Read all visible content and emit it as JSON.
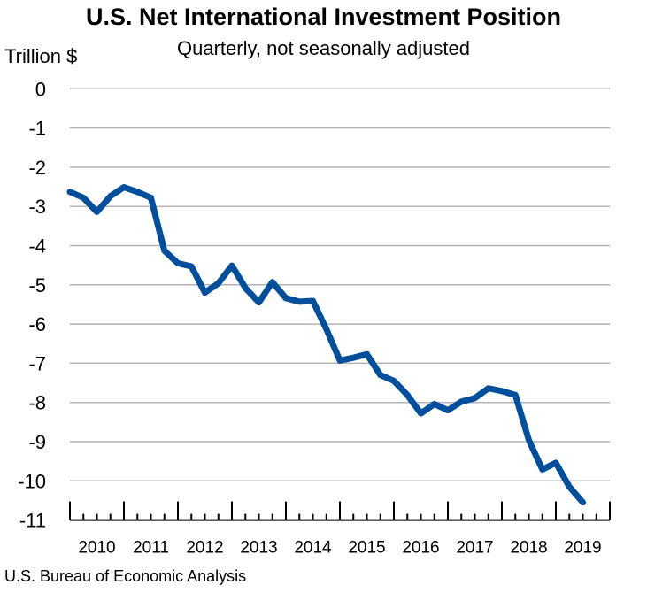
{
  "chart_data": {
    "type": "line",
    "title": "U.S. Net International Investment Position",
    "subtitle": "Quarterly, not seasonally adjusted",
    "ylabel": "Trillion $",
    "xlabel": "",
    "source": "U.S. Bureau of Economic Analysis",
    "ylim": [
      -11,
      0
    ],
    "yticks": [
      "0",
      "-1",
      "-2",
      "-3",
      "-4",
      "-5",
      "-6",
      "-7",
      "-8",
      "-9",
      "-10",
      "-11"
    ],
    "xtick_labels": [
      "2010",
      "2011",
      "2012",
      "2013",
      "2014",
      "2015",
      "2016",
      "2017",
      "2018",
      "2019"
    ],
    "grid": "horizontal",
    "line_color": "#004f9c",
    "x": [
      "2010Q1",
      "2010Q2",
      "2010Q3",
      "2010Q4",
      "2011Q1",
      "2011Q2",
      "2011Q3",
      "2011Q4",
      "2012Q1",
      "2012Q2",
      "2012Q3",
      "2012Q4",
      "2013Q1",
      "2013Q2",
      "2013Q3",
      "2013Q4",
      "2014Q1",
      "2014Q2",
      "2014Q3",
      "2014Q4",
      "2015Q1",
      "2015Q2",
      "2015Q3",
      "2015Q4",
      "2016Q1",
      "2016Q2",
      "2016Q3",
      "2016Q4",
      "2017Q1",
      "2017Q2",
      "2017Q3",
      "2017Q4",
      "2018Q1",
      "2018Q2",
      "2018Q3",
      "2018Q4",
      "2019Q1",
      "2019Q2",
      "2019Q3"
    ],
    "values": [
      -2.63,
      -2.78,
      -3.14,
      -2.74,
      -2.51,
      -2.63,
      -2.78,
      -4.13,
      -4.45,
      -4.53,
      -5.2,
      -4.96,
      -4.51,
      -5.08,
      -5.45,
      -4.93,
      -5.34,
      -5.43,
      -5.41,
      -6.13,
      -6.93,
      -6.86,
      -6.77,
      -7.3,
      -7.45,
      -7.81,
      -8.28,
      -8.04,
      -8.2,
      -7.98,
      -7.89,
      -7.64,
      -7.71,
      -7.81,
      -8.96,
      -9.71,
      -9.54,
      -10.15,
      -10.55
    ]
  }
}
